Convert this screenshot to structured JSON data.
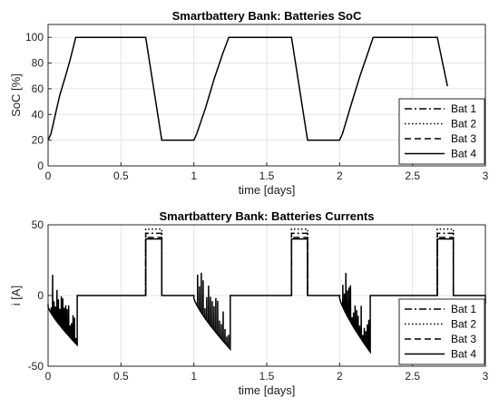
{
  "chart_data": [
    {
      "type": "line",
      "title": "Smartbattery Bank: Batteries SoC",
      "xlabel": "time [days]",
      "ylabel": "SoC [%]",
      "xlim": [
        0,
        3
      ],
      "ylim": [
        0,
        110
      ],
      "xticks": [
        0,
        0.5,
        1,
        1.5,
        2,
        2.5,
        3
      ],
      "xtick_labels": [
        "0",
        "0.5",
        "1",
        "1.5",
        "2",
        "2.5",
        "3"
      ],
      "yticks": [
        0,
        20,
        40,
        60,
        80,
        100
      ],
      "ytick_labels": [
        "0",
        "20",
        "40",
        "60",
        "80",
        "100"
      ],
      "grid": true,
      "legend": "bottom-right",
      "series": [
        {
          "name": "Bat 1",
          "style": "dashdot"
        },
        {
          "name": "Bat 2",
          "style": "dotted"
        },
        {
          "name": "Bat 3",
          "style": "dashed"
        },
        {
          "name": "Bat 4",
          "style": "solid",
          "x": [
            0,
            0.02,
            0.05,
            0.08,
            0.12,
            0.15,
            0.19,
            0.67,
            0.78,
            1.0,
            1.02,
            1.08,
            1.14,
            1.2,
            1.24,
            1.67,
            1.78,
            2.0,
            2.02,
            2.08,
            2.14,
            2.2,
            2.23,
            2.67,
            2.74
          ],
          "y": [
            20,
            25,
            40,
            55,
            70,
            82,
            100,
            100,
            20,
            20,
            25,
            45,
            68,
            88,
            100,
            100,
            20,
            20,
            25,
            48,
            70,
            90,
            100,
            100,
            62
          ]
        }
      ]
    },
    {
      "type": "line",
      "title": "Smartbattery Bank: Batteries Currents",
      "xlabel": "time [days]",
      "ylabel": "i [A]",
      "xlim": [
        0,
        3
      ],
      "ylim": [
        -50,
        50
      ],
      "xticks": [
        0,
        0.5,
        1,
        1.5,
        2,
        2.5,
        3
      ],
      "xtick_labels": [
        "0",
        "0.5",
        "1",
        "1.5",
        "2",
        "2.5",
        "3"
      ],
      "yticks": [
        -50,
        0,
        50
      ],
      "ytick_labels": [
        "-50",
        "0",
        "50"
      ],
      "grid": true,
      "legend": "bottom-right",
      "series": [
        {
          "name": "Bat 1",
          "style": "dashdot",
          "x": [
            0.67,
            0.67,
            0.78,
            0.78
          ],
          "y": [
            0,
            44,
            44,
            0
          ]
        },
        {
          "name": "Bat 2",
          "style": "dotted",
          "x": [
            0.67,
            0.67,
            0.78,
            0.78
          ],
          "y": [
            0,
            47,
            47,
            0
          ]
        },
        {
          "name": "Bat 3",
          "style": "dashed",
          "x": [
            0.67,
            0.67,
            0.78,
            0.78
          ],
          "y": [
            0,
            41,
            41,
            0
          ]
        },
        {
          "name": "Bat 4",
          "style": "solid",
          "x": [
            0,
            0.2,
            0.2,
            0.67,
            0.67,
            0.78,
            0.78,
            1.0,
            1.25,
            1.25,
            1.67,
            1.67,
            1.78,
            1.78,
            2.0,
            2.21,
            2.21,
            2.67,
            2.67,
            2.78,
            2.78,
            3.0
          ],
          "y": [
            -8,
            -35,
            0,
            0,
            40,
            40,
            0,
            0,
            -38,
            0,
            0,
            40,
            40,
            0,
            0,
            -40,
            0,
            0,
            40,
            40,
            0,
            -6
          ]
        }
      ]
    }
  ]
}
